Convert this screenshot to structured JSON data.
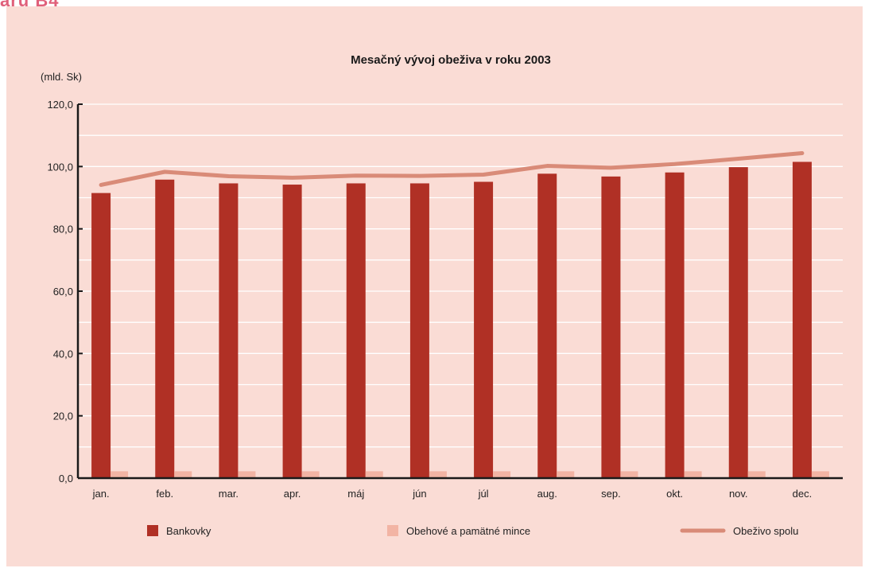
{
  "page_header": "aru B4",
  "colors": {
    "background": "#fadcd5",
    "gridline": "#ffffff",
    "axis": "#1a1a1a",
    "banknotes": "#b03025",
    "coins": "#f2b4a4",
    "total": "#d98b78"
  },
  "chart_data": {
    "type": "bar",
    "title": "Mesačný vývoj obeživa v roku 2003",
    "unit_label": "(mld. Sk)",
    "xlabel": "",
    "ylabel": "",
    "ylim": [
      0,
      120
    ],
    "yticks": [
      "0,0",
      "20,0",
      "40,0",
      "60,0",
      "80,0",
      "100,0",
      "120,0"
    ],
    "ytick_values": [
      0,
      20,
      40,
      60,
      80,
      100,
      120
    ],
    "grid": true,
    "legend_position": "bottom",
    "categories": [
      "jan.",
      "feb.",
      "mar.",
      "apr.",
      "máj",
      "jún",
      "júl",
      "aug.",
      "sep.",
      "okt.",
      "nov.",
      "dec."
    ],
    "series": [
      {
        "name": "Bankovky",
        "kind": "bar",
        "values": [
          91.5,
          95.8,
          94.6,
          94.2,
          94.6,
          94.6,
          95.1,
          97.7,
          96.8,
          98.1,
          99.8,
          101.5
        ]
      },
      {
        "name": "Obehové a pamätné mince",
        "kind": "bar",
        "values": [
          2.2,
          2.2,
          2.2,
          2.2,
          2.2,
          2.2,
          2.2,
          2.2,
          2.2,
          2.2,
          2.2,
          2.2
        ]
      },
      {
        "name": "Obeživo spolu",
        "kind": "line",
        "values": [
          94.1,
          98.3,
          96.9,
          96.4,
          97.1,
          97.0,
          97.4,
          100.2,
          99.6,
          100.8,
          102.5,
          104.3
        ]
      }
    ]
  }
}
